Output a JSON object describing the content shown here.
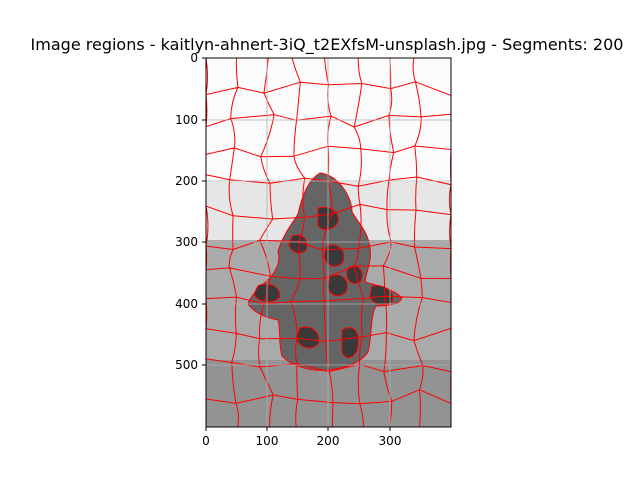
{
  "figure": {
    "title": "Image regions - kaitlyn-ahnert-3iQ_t2EXfsM-unsplash.jpg - Segments: 200",
    "x_ticks": [
      "0",
      "100",
      "200",
      "300"
    ],
    "y_ticks": [
      "0",
      "100",
      "200",
      "300",
      "400",
      "500"
    ],
    "grid": true,
    "boundary_color": "#ff0000",
    "colors": {
      "white_bg": "#fbfbfb",
      "light_band": "#e6e6e6",
      "mid_gray": "#aaaaaa",
      "dark_gray": "#939393",
      "dark_shape": "#656565",
      "darkest": "#393939"
    }
  }
}
